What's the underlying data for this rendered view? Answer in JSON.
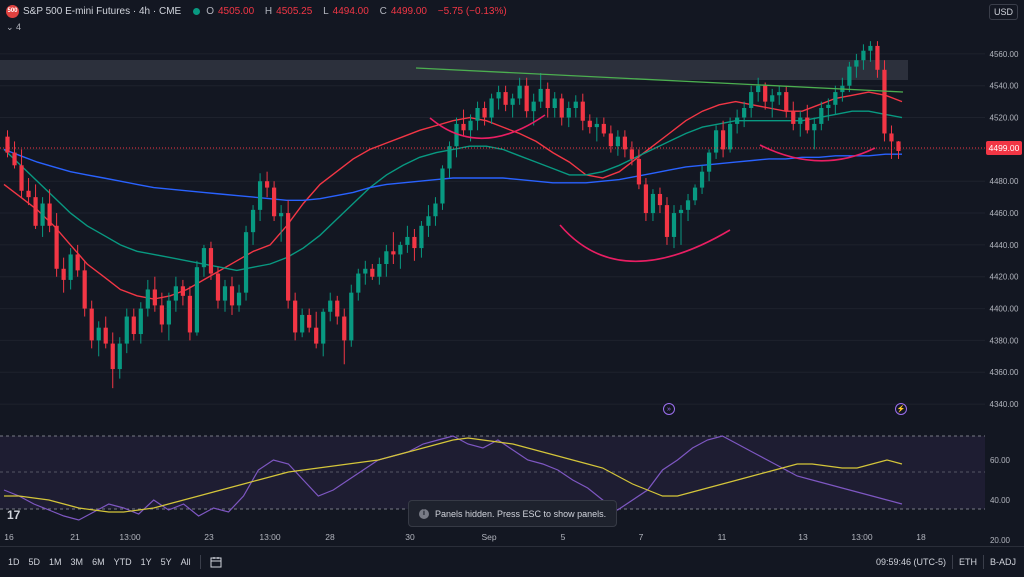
{
  "header": {
    "logo_text": "500",
    "symbol_title": "S&P 500 E-mini Futures · 4h · CME",
    "open_label": "O",
    "open": "4505.00",
    "high_label": "H",
    "high": "4505.25",
    "low_label": "L",
    "low": "4494.00",
    "close_label": "C",
    "close": "4499.00",
    "change": "−5.75 (−0.13%)",
    "indicators_toggle": "⌄ 4",
    "currency": "USD"
  },
  "price_axis": {
    "ticks": [
      "4560.00",
      "4540.00",
      "4520.00",
      "4500.00",
      "4480.00",
      "4460.00",
      "4440.00",
      "4420.00",
      "4400.00",
      "4380.00",
      "4360.00",
      "4340.00"
    ],
    "last_price_label": "4499.00"
  },
  "rsi_axis": {
    "ticks": [
      "60.00",
      "40.00",
      "20.00"
    ]
  },
  "time_axis": {
    "labels": [
      "16",
      "21",
      "13:00",
      "23",
      "13:00",
      "28",
      "30",
      "Sep",
      "5",
      "7",
      "11",
      "13",
      "13:00",
      "18"
    ]
  },
  "toast": {
    "text": "Panels hidden. Press ESC to show panels.",
    "icon": "i"
  },
  "tv_logo": "17",
  "events": [
    {
      "icon": "earnings-event-icon",
      "glyph": "»"
    },
    {
      "icon": "dividend-event-icon",
      "glyph": "⚡"
    }
  ],
  "bottombar": {
    "ranges": [
      "1D",
      "5D",
      "1M",
      "3M",
      "6M",
      "YTD",
      "1Y",
      "5Y",
      "All"
    ],
    "calendar_icon": "calendar-icon",
    "clock": "09:59:46 (UTC-5)",
    "session": "ETH",
    "adjustment": "B-ADJ"
  },
  "colors": {
    "up": "#089981",
    "down": "#f23645",
    "background": "#131722",
    "ma_red": "#f23645",
    "ma_green": "#089981",
    "ma_blue": "#2962ff",
    "trendline": "#4caf50",
    "arc": "#e91e63",
    "rsi": "#7e57c2",
    "rsi_ma": "#d4c53a",
    "zone": "#363a45"
  },
  "chart_data": [
    {
      "type": "candlestick",
      "title": "S&P 500 E-mini Futures · 4h · CME",
      "ylim": [
        4330,
        4575
      ],
      "candles": [
        [
          4508,
          4512,
          4495,
          4498
        ],
        [
          4498,
          4505,
          4488,
          4490
        ],
        [
          4490,
          4500,
          4470,
          4474
        ],
        [
          4474,
          4482,
          4465,
          4470
        ],
        [
          4470,
          4478,
          4450,
          4452
        ],
        [
          4452,
          4470,
          4445,
          4466
        ],
        [
          4466,
          4475,
          4448,
          4452
        ],
        [
          4452,
          4460,
          4420,
          4425
        ],
        [
          4425,
          4432,
          4410,
          4418
        ],
        [
          4418,
          4438,
          4412,
          4434
        ],
        [
          4434,
          4440,
          4420,
          4424
        ],
        [
          4424,
          4430,
          4395,
          4400
        ],
        [
          4400,
          4405,
          4375,
          4380
        ],
        [
          4380,
          4392,
          4370,
          4388
        ],
        [
          4388,
          4395,
          4375,
          4378
        ],
        [
          4378,
          4385,
          4350,
          4362
        ],
        [
          4362,
          4382,
          4356,
          4378
        ],
        [
          4378,
          4400,
          4372,
          4395
        ],
        [
          4395,
          4400,
          4380,
          4384
        ],
        [
          4384,
          4404,
          4378,
          4400
        ],
        [
          4400,
          4418,
          4395,
          4412
        ],
        [
          4412,
          4420,
          4398,
          4402
        ],
        [
          4402,
          4410,
          4385,
          4390
        ],
        [
          4390,
          4410,
          4380,
          4405
        ],
        [
          4405,
          4420,
          4398,
          4414
        ],
        [
          4414,
          4418,
          4402,
          4408
        ],
        [
          4408,
          4414,
          4380,
          4385
        ],
        [
          4385,
          4430,
          4383,
          4426
        ],
        [
          4426,
          4440,
          4420,
          4438
        ],
        [
          4438,
          4442,
          4418,
          4422
        ],
        [
          4422,
          4426,
          4400,
          4405
        ],
        [
          4405,
          4418,
          4398,
          4414
        ],
        [
          4414,
          4420,
          4396,
          4402
        ],
        [
          4402,
          4415,
          4398,
          4410
        ],
        [
          4410,
          4452,
          4405,
          4448
        ],
        [
          4448,
          4465,
          4440,
          4462
        ],
        [
          4462,
          4485,
          4455,
          4480
        ],
        [
          4480,
          4486,
          4470,
          4476
        ],
        [
          4476,
          4480,
          4455,
          4458
        ],
        [
          4458,
          4465,
          4442,
          4460
        ],
        [
          4460,
          4468,
          4400,
          4405
        ],
        [
          4405,
          4410,
          4380,
          4385
        ],
        [
          4385,
          4400,
          4382,
          4396
        ],
        [
          4396,
          4400,
          4385,
          4388
        ],
        [
          4388,
          4398,
          4375,
          4378
        ],
        [
          4378,
          4400,
          4370,
          4398
        ],
        [
          4398,
          4410,
          4392,
          4405
        ],
        [
          4405,
          4408,
          4390,
          4395
        ],
        [
          4395,
          4400,
          4365,
          4380
        ],
        [
          4380,
          4415,
          4376,
          4410
        ],
        [
          4410,
          4425,
          4405,
          4422
        ],
        [
          4422,
          4430,
          4415,
          4425
        ],
        [
          4425,
          4428,
          4418,
          4420
        ],
        [
          4420,
          4432,
          4415,
          4428
        ],
        [
          4428,
          4440,
          4420,
          4436
        ],
        [
          4436,
          4448,
          4428,
          4434
        ],
        [
          4434,
          4442,
          4425,
          4440
        ],
        [
          4440,
          4452,
          4435,
          4445
        ],
        [
          4445,
          4450,
          4430,
          4438
        ],
        [
          4438,
          4455,
          4432,
          4452
        ],
        [
          4452,
          4465,
          4445,
          4458
        ],
        [
          4458,
          4470,
          4452,
          4466
        ],
        [
          4466,
          4490,
          4462,
          4488
        ],
        [
          4488,
          4505,
          4482,
          4502
        ],
        [
          4502,
          4520,
          4495,
          4516
        ],
        [
          4516,
          4525,
          4508,
          4512
        ],
        [
          4512,
          4522,
          4505,
          4518
        ],
        [
          4518,
          4530,
          4512,
          4526
        ],
        [
          4526,
          4530,
          4515,
          4520
        ],
        [
          4520,
          4535,
          4516,
          4532
        ],
        [
          4532,
          4540,
          4525,
          4536
        ],
        [
          4536,
          4540,
          4524,
          4528
        ],
        [
          4528,
          4535,
          4520,
          4532
        ],
        [
          4532,
          4545,
          4528,
          4540
        ],
        [
          4540,
          4545,
          4520,
          4524
        ],
        [
          4524,
          4535,
          4515,
          4530
        ],
        [
          4530,
          4548,
          4526,
          4538
        ],
        [
          4538,
          4542,
          4520,
          4526
        ],
        [
          4526,
          4536,
          4520,
          4532
        ],
        [
          4532,
          4535,
          4515,
          4520
        ],
        [
          4520,
          4530,
          4514,
          4526
        ],
        [
          4526,
          4534,
          4520,
          4530
        ],
        [
          4530,
          4535,
          4512,
          4518
        ],
        [
          4518,
          4522,
          4510,
          4514
        ],
        [
          4514,
          4520,
          4505,
          4516
        ],
        [
          4516,
          4520,
          4508,
          4510
        ],
        [
          4510,
          4515,
          4498,
          4502
        ],
        [
          4502,
          4512,
          4496,
          4508
        ],
        [
          4508,
          4512,
          4495,
          4500
        ],
        [
          4500,
          4505,
          4490,
          4494
        ],
        [
          4494,
          4500,
          4475,
          4478
        ],
        [
          4478,
          4482,
          4455,
          4460
        ],
        [
          4460,
          4475,
          4455,
          4472
        ],
        [
          4472,
          4476,
          4460,
          4465
        ],
        [
          4465,
          4470,
          4440,
          4445
        ],
        [
          4445,
          4465,
          4438,
          4460
        ],
        [
          4460,
          4465,
          4440,
          4462
        ],
        [
          4462,
          4472,
          4455,
          4468
        ],
        [
          4468,
          4478,
          4465,
          4476
        ],
        [
          4476,
          4490,
          4472,
          4486
        ],
        [
          4486,
          4500,
          4480,
          4498
        ],
        [
          4498,
          4515,
          4494,
          4512
        ],
        [
          4512,
          4518,
          4495,
          4500
        ],
        [
          4500,
          4520,
          4498,
          4516
        ],
        [
          4516,
          4525,
          4510,
          4520
        ],
        [
          4520,
          4530,
          4514,
          4526
        ],
        [
          4526,
          4540,
          4520,
          4536
        ],
        [
          4536,
          4545,
          4530,
          4540
        ],
        [
          4540,
          4542,
          4525,
          4530
        ],
        [
          4530,
          4538,
          4520,
          4534
        ],
        [
          4534,
          4540,
          4528,
          4536
        ],
        [
          4536,
          4540,
          4520,
          4524
        ],
        [
          4524,
          4530,
          4512,
          4516
        ],
        [
          4516,
          4524,
          4508,
          4520
        ],
        [
          4520,
          4528,
          4510,
          4512
        ],
        [
          4512,
          4520,
          4500,
          4516
        ],
        [
          4516,
          4530,
          4512,
          4526
        ],
        [
          4526,
          4532,
          4518,
          4528
        ],
        [
          4528,
          4540,
          4522,
          4536
        ],
        [
          4536,
          4545,
          4530,
          4540
        ],
        [
          4540,
          4555,
          4536,
          4552
        ],
        [
          4552,
          4560,
          4545,
          4556
        ],
        [
          4556,
          4566,
          4550,
          4562
        ],
        [
          4562,
          4568,
          4555,
          4565
        ],
        [
          4565,
          4568,
          4545,
          4550
        ],
        [
          4550,
          4556,
          4505,
          4510
        ],
        [
          4510,
          4515,
          4494,
          4505
        ],
        [
          4505,
          4505.25,
          4494,
          4499
        ]
      ],
      "moving_averages": [
        {
          "color": "red",
          "values": [
            4478,
            4470,
            4462,
            4452,
            4440,
            4428,
            4420,
            4412,
            4408,
            4406,
            4408,
            4412,
            4418,
            4424,
            4430,
            4436,
            4440,
            4452,
            4466,
            4478,
            4486,
            4494,
            4500,
            4504,
            4508,
            4512,
            4515,
            4518,
            4520,
            4518,
            4514,
            4510,
            4505,
            4498,
            4492,
            4484,
            4482,
            4486,
            4494,
            4502,
            4510,
            4518,
            4524,
            4528,
            4530,
            4528,
            4526,
            4524,
            4524,
            4528,
            4532,
            4534,
            4536,
            4534,
            4530
          ]
        },
        {
          "color": "green",
          "values": [
            4500,
            4490,
            4480,
            4470,
            4460,
            4452,
            4446,
            4440,
            4436,
            4434,
            4432,
            4430,
            4428,
            4426,
            4424,
            4426,
            4428,
            4432,
            4438,
            4446,
            4456,
            4466,
            4476,
            4484,
            4490,
            4495,
            4498,
            4500,
            4502,
            4502,
            4500,
            4496,
            4492,
            4488,
            4484,
            4484,
            4486,
            4490,
            4495,
            4500,
            4505,
            4510,
            4514,
            4516,
            4518,
            4518,
            4518,
            4518,
            4518,
            4520,
            4522,
            4524,
            4524,
            4522,
            4520
          ]
        },
        {
          "color": "blue",
          "values": [
            4500,
            4496,
            4492,
            4489,
            4486,
            4484,
            4482,
            4480,
            4478,
            4476,
            4475,
            4474,
            4473,
            4472,
            4471,
            4470,
            4469,
            4468,
            4468,
            4469,
            4471,
            4473,
            4476,
            4478,
            4479,
            4480,
            4481,
            4482,
            4482,
            4482,
            4482,
            4481,
            4480,
            4479,
            4479,
            4479,
            4480,
            4481,
            4483,
            4485,
            4487,
            4489,
            4490,
            4491,
            4492,
            4493,
            4494,
            4494,
            4495,
            4495,
            4496,
            4496,
            4496,
            4497,
            4497
          ]
        }
      ]
    },
    {
      "type": "line",
      "ylim": [
        20,
        75
      ],
      "series": [
        {
          "color": "rsi",
          "values": [
            45,
            42,
            38,
            35,
            32,
            30,
            34,
            38,
            36,
            33,
            40,
            35,
            38,
            32,
            36,
            34,
            42,
            55,
            60,
            58,
            50,
            42,
            45,
            50,
            55,
            60,
            62,
            64,
            68,
            70,
            72,
            68,
            66,
            70,
            65,
            60,
            58,
            55,
            50,
            46,
            40,
            35,
            40,
            45,
            55,
            60,
            66,
            70,
            72,
            68,
            64,
            60,
            56,
            52,
            50,
            48,
            46,
            44,
            42,
            40,
            38
          ]
        },
        {
          "color": "rsi_ma",
          "values": [
            42,
            42,
            41,
            40,
            38,
            36,
            35,
            34,
            34,
            35,
            36,
            38,
            40,
            42,
            44,
            46,
            48,
            50,
            52,
            54,
            55,
            56,
            57,
            58,
            59,
            60,
            62,
            64,
            66,
            68,
            70,
            71,
            70,
            69,
            68,
            66,
            64,
            62,
            60,
            58,
            56,
            52,
            48,
            45,
            42,
            42,
            44,
            46,
            48,
            50,
            52,
            54,
            56,
            58,
            58,
            57,
            56,
            56,
            58,
            60,
            58
          ]
        }
      ]
    }
  ]
}
